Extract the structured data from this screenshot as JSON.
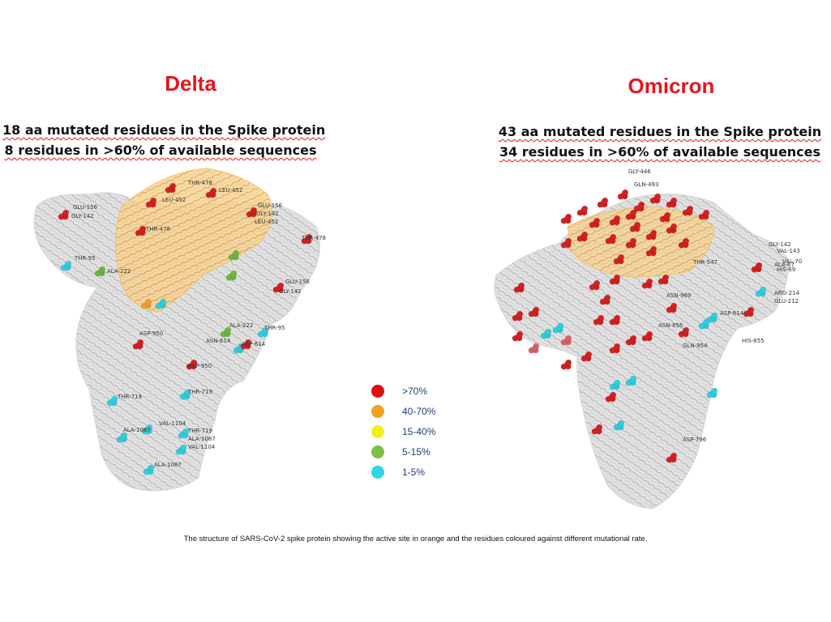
{
  "panels": [
    {
      "name": "Delta",
      "line1": "18 aa mutated residues in the Spike protein",
      "line2": "8 residues in >60% of available sequences",
      "labels": [
        "GLU-156",
        "GLY-142",
        "THR-478",
        "LEU-452",
        "LEU-452",
        "GLU-156",
        "GLY-142",
        "LEU-452",
        "THR-478",
        "THR-478",
        "THR-95",
        "ALA-222",
        "GLU-156",
        "GLY-142",
        "ALA-222",
        "THR-95",
        "ASP-950",
        "ASN-614",
        "ASP-614",
        "ASP-950",
        "THR-719",
        "THR-719",
        "VAL-1104",
        "ALA-1087",
        "THR-719",
        "ALA-1087",
        "VAL-1104",
        "ALA-1087"
      ]
    },
    {
      "name": "Omicron",
      "line1": "43 aa mutated residues in the Spike protein",
      "line2": "34 residues in >60% of available sequences",
      "labels": [
        "GLY-446",
        "GLN-493",
        "GLY-142",
        "VAL-143",
        "ALA-67",
        "VAL-70",
        "HIS-69",
        "THR-547",
        "ARG-214",
        "GLU-212",
        "ASN-969",
        "ASP-614",
        "HIS-655",
        "GLN-954",
        "ASN-856",
        "ASP-796"
      ]
    }
  ],
  "legend": [
    {
      "label": ">70%",
      "color": "#e01010"
    },
    {
      "label": "40-70%",
      "color": "#f5a020"
    },
    {
      "label": "15-40%",
      "color": "#f2ef1a"
    },
    {
      "label": "5-15%",
      "color": "#7cc043"
    },
    {
      "label": "1-5%",
      "color": "#2fd6e6"
    }
  ],
  "caption": "The structure of SARS-CoV-2 spike protein showing the active site in orange and the residues coloured against different mutational rate."
}
